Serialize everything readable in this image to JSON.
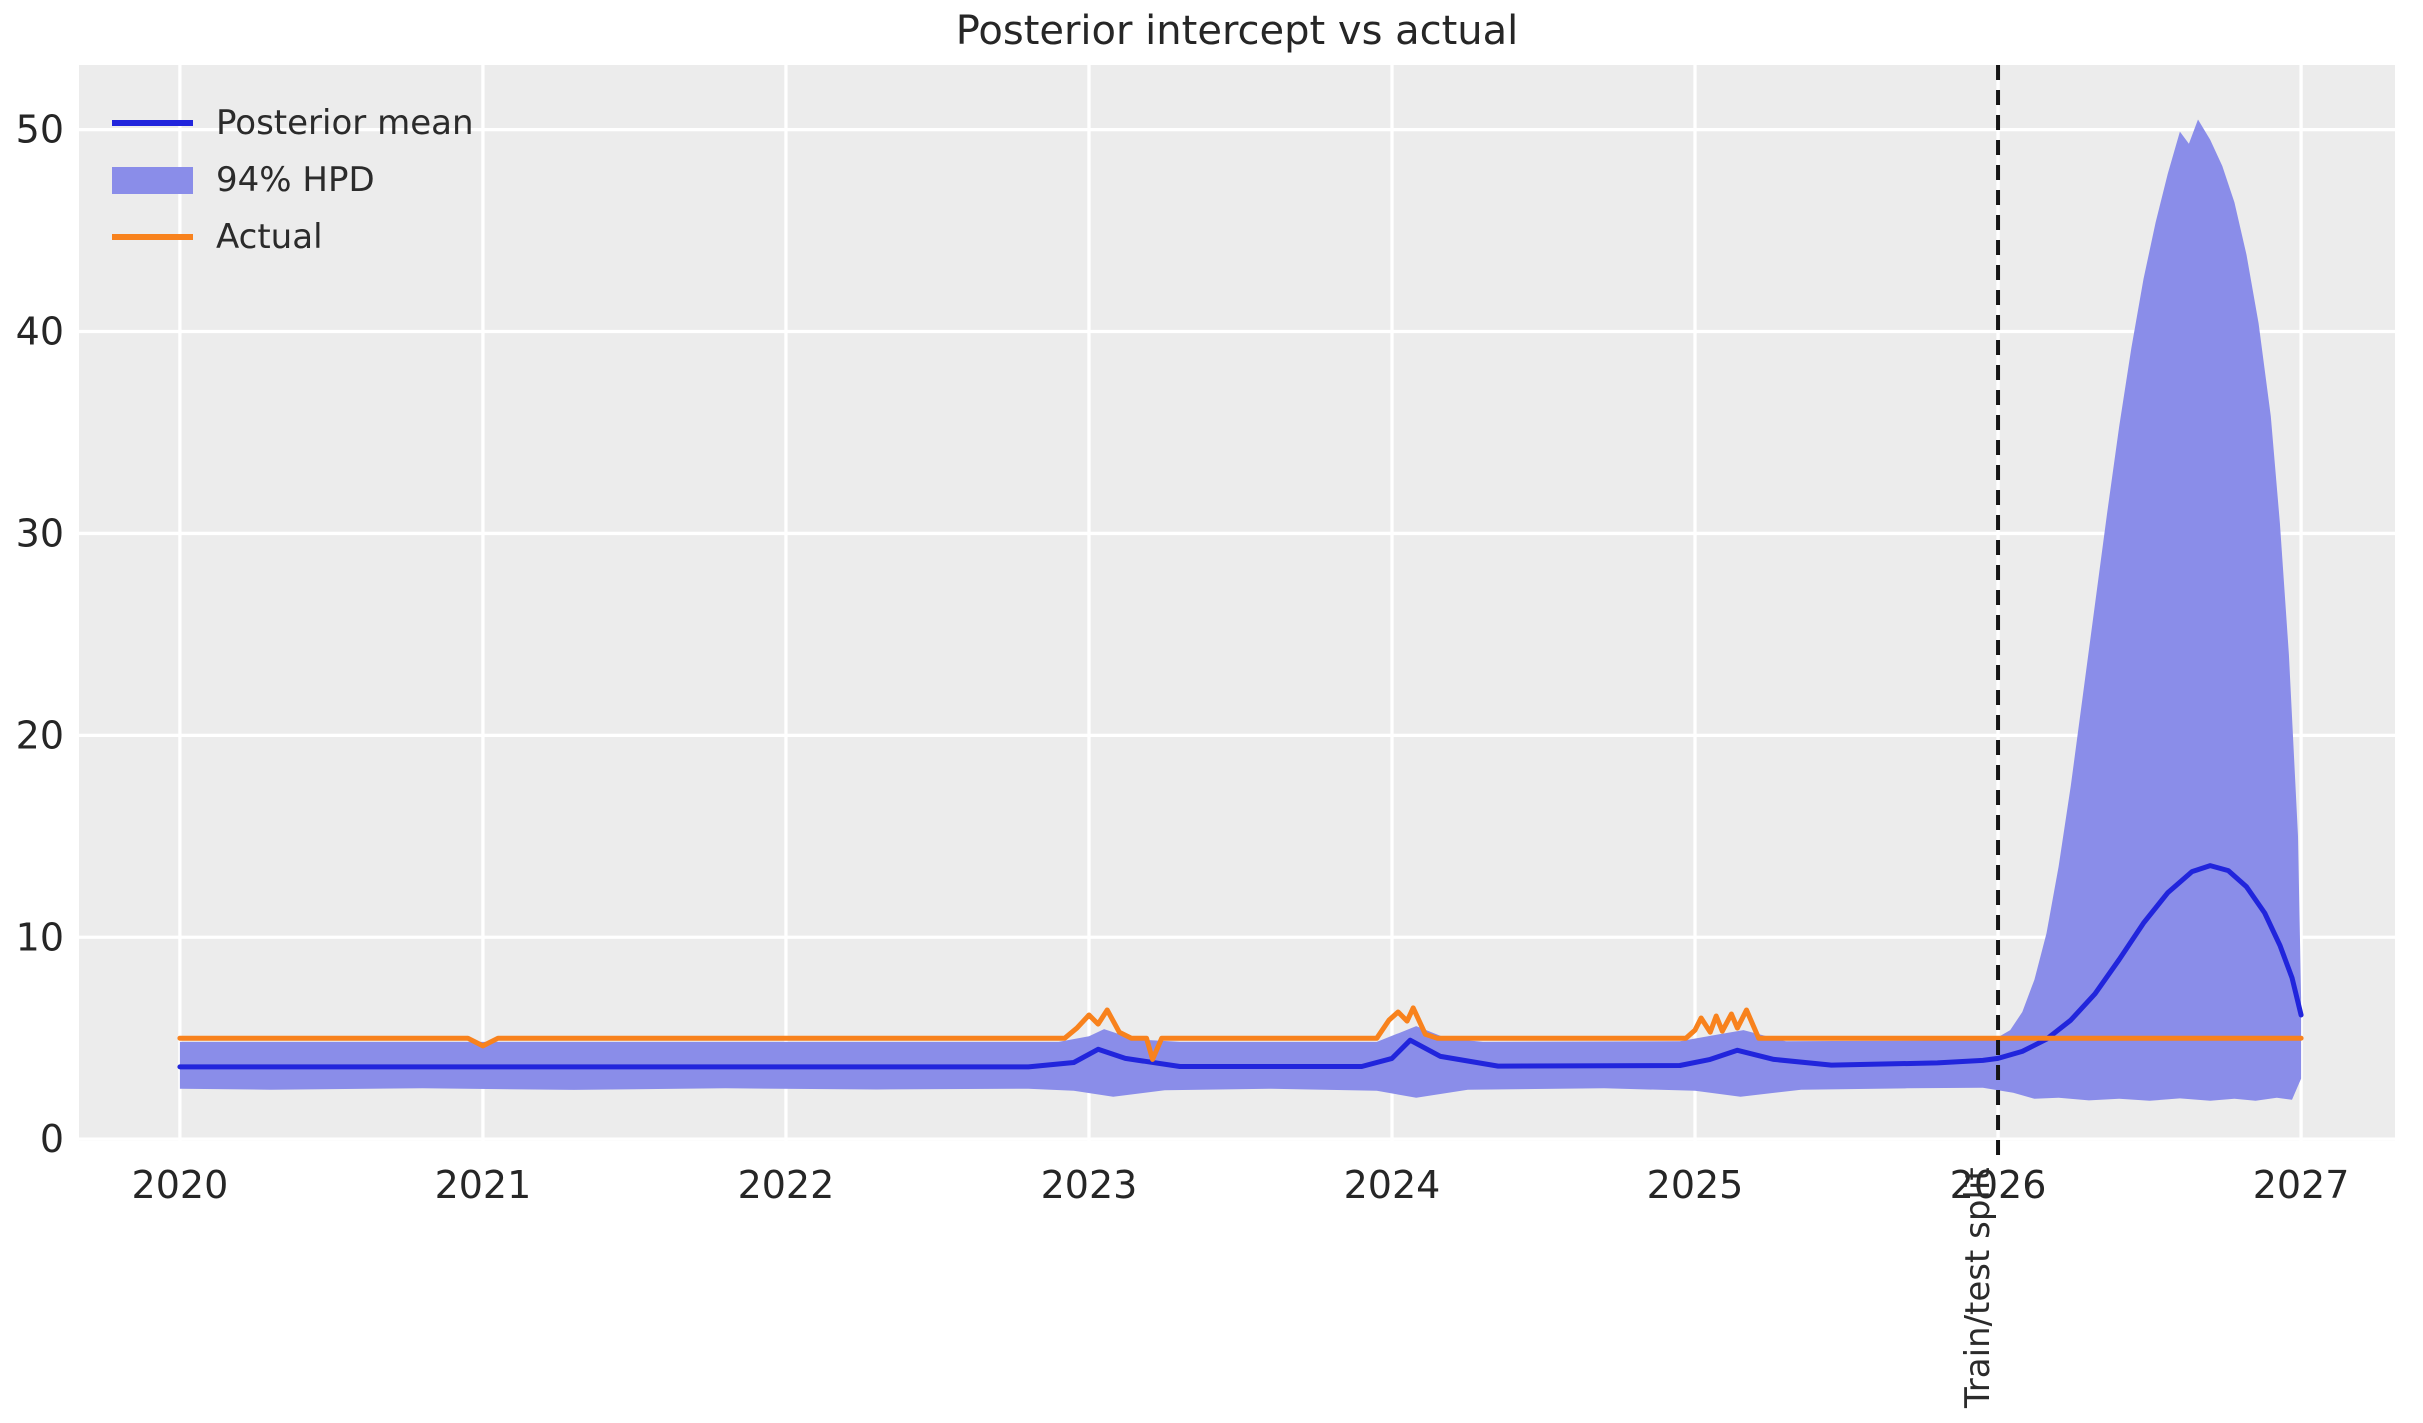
{
  "chart_data": {
    "type": "line",
    "title": "Posterior intercept vs actual",
    "xlabel": "",
    "ylabel": "",
    "xlim": [
      2019.667,
      2027.31
    ],
    "ylim": [
      -0.09,
      53.2
    ],
    "x_ticks": [
      2020,
      2021,
      2022,
      2023,
      2024,
      2025,
      2026,
      2027
    ],
    "y_ticks": [
      0,
      10,
      20,
      30,
      40,
      50
    ],
    "grid_on": true,
    "legend_position": "upper-left",
    "colors": {
      "plot_background": "#ececec",
      "grid": "#ffffff",
      "tick_labels": "#262626",
      "posterior_mean": "#2125dc",
      "hpd_band": "#8a8de9",
      "actual": "#f8821d",
      "split_line": "#141414"
    },
    "legend": [
      {
        "label": "Posterior mean",
        "type": "line",
        "color": "#2125dc"
      },
      {
        "label": "94% HPD",
        "type": "band",
        "color": "#8a8de9"
      },
      {
        "label": "Actual",
        "type": "line",
        "color": "#f8821d"
      }
    ],
    "split_line": {
      "x": 2026.0,
      "label": "Train/test split"
    },
    "series": [
      {
        "name": "Posterior mean",
        "color": "#2125dc",
        "width": 5,
        "points": [
          [
            2020.0,
            3.58
          ],
          [
            2022.8,
            3.58
          ],
          [
            2022.95,
            3.8
          ],
          [
            2023.03,
            4.45
          ],
          [
            2023.12,
            4.0
          ],
          [
            2023.3,
            3.6
          ],
          [
            2023.9,
            3.6
          ],
          [
            2024.0,
            4.0
          ],
          [
            2024.06,
            4.9
          ],
          [
            2024.16,
            4.1
          ],
          [
            2024.35,
            3.62
          ],
          [
            2024.95,
            3.65
          ],
          [
            2025.05,
            3.95
          ],
          [
            2025.14,
            4.4
          ],
          [
            2025.26,
            3.95
          ],
          [
            2025.45,
            3.67
          ],
          [
            2025.8,
            3.78
          ],
          [
            2025.95,
            3.9
          ],
          [
            2026.0,
            4.0
          ],
          [
            2026.08,
            4.35
          ],
          [
            2026.16,
            4.95
          ],
          [
            2026.24,
            5.9
          ],
          [
            2026.32,
            7.2
          ],
          [
            2026.4,
            8.9
          ],
          [
            2026.48,
            10.7
          ],
          [
            2026.56,
            12.2
          ],
          [
            2026.64,
            13.25
          ],
          [
            2026.7,
            13.55
          ],
          [
            2026.76,
            13.3
          ],
          [
            2026.82,
            12.5
          ],
          [
            2026.88,
            11.2
          ],
          [
            2026.93,
            9.6
          ],
          [
            2026.97,
            8.0
          ],
          [
            2027.0,
            6.15
          ]
        ]
      },
      {
        "name": "Actual",
        "color": "#f8821d",
        "width": 5,
        "points": [
          [
            2020.0,
            5
          ],
          [
            2020.95,
            5
          ],
          [
            2021.0,
            4.62
          ],
          [
            2021.05,
            5
          ],
          [
            2022.92,
            5
          ],
          [
            2022.96,
            5.5
          ],
          [
            2023.0,
            6.15
          ],
          [
            2023.03,
            5.7
          ],
          [
            2023.06,
            6.4
          ],
          [
            2023.1,
            5.3
          ],
          [
            2023.14,
            5
          ],
          [
            2023.19,
            5
          ],
          [
            2023.21,
            3.95
          ],
          [
            2023.24,
            5
          ],
          [
            2023.95,
            5
          ],
          [
            2023.99,
            5.9
          ],
          [
            2024.02,
            6.3
          ],
          [
            2024.05,
            5.85
          ],
          [
            2024.07,
            6.5
          ],
          [
            2024.11,
            5.2
          ],
          [
            2024.15,
            5
          ],
          [
            2024.97,
            5
          ],
          [
            2025.0,
            5.4
          ],
          [
            2025.02,
            6.0
          ],
          [
            2025.05,
            5.3
          ],
          [
            2025.07,
            6.1
          ],
          [
            2025.09,
            5.35
          ],
          [
            2025.12,
            6.2
          ],
          [
            2025.14,
            5.5
          ],
          [
            2025.17,
            6.4
          ],
          [
            2025.21,
            5
          ],
          [
            2027.0,
            5
          ]
        ]
      }
    ],
    "band": {
      "name": "94% HPD",
      "color": "#8a8de9",
      "upper": [
        [
          2020.0,
          4.82
        ],
        [
          2022.9,
          4.82
        ],
        [
          2023.0,
          5.1
        ],
        [
          2023.05,
          5.45
        ],
        [
          2023.15,
          4.95
        ],
        [
          2023.3,
          4.82
        ],
        [
          2023.95,
          4.82
        ],
        [
          2024.03,
          5.3
        ],
        [
          2024.08,
          5.6
        ],
        [
          2024.18,
          5.0
        ],
        [
          2024.3,
          4.82
        ],
        [
          2024.95,
          4.85
        ],
        [
          2025.08,
          5.2
        ],
        [
          2025.16,
          5.4
        ],
        [
          2025.3,
          4.85
        ],
        [
          2025.9,
          4.9
        ],
        [
          2026.0,
          5.05
        ],
        [
          2026.04,
          5.4
        ],
        [
          2026.08,
          6.3
        ],
        [
          2026.12,
          7.9
        ],
        [
          2026.16,
          10.2
        ],
        [
          2026.2,
          13.5
        ],
        [
          2026.24,
          17.5
        ],
        [
          2026.28,
          22
        ],
        [
          2026.32,
          26.5
        ],
        [
          2026.36,
          31
        ],
        [
          2026.4,
          35.3
        ],
        [
          2026.44,
          39.2
        ],
        [
          2026.48,
          42.6
        ],
        [
          2026.52,
          45.4
        ],
        [
          2026.56,
          47.8
        ],
        [
          2026.6,
          49.9
        ],
        [
          2026.63,
          49.3
        ],
        [
          2026.66,
          50.5
        ],
        [
          2026.7,
          49.5
        ],
        [
          2026.74,
          48.2
        ],
        [
          2026.78,
          46.4
        ],
        [
          2026.82,
          43.8
        ],
        [
          2026.86,
          40.4
        ],
        [
          2026.9,
          35.8
        ],
        [
          2026.93,
          30.5
        ],
        [
          2026.96,
          24
        ],
        [
          2026.99,
          15
        ],
        [
          2027.0,
          7.0
        ]
      ],
      "lower": [
        [
          2020.0,
          2.5
        ],
        [
          2020.3,
          2.45
        ],
        [
          2020.8,
          2.52
        ],
        [
          2021.3,
          2.44
        ],
        [
          2021.8,
          2.52
        ],
        [
          2022.3,
          2.46
        ],
        [
          2022.8,
          2.5
        ],
        [
          2022.95,
          2.4
        ],
        [
          2023.08,
          2.1
        ],
        [
          2023.25,
          2.42
        ],
        [
          2023.6,
          2.5
        ],
        [
          2023.95,
          2.4
        ],
        [
          2024.08,
          2.05
        ],
        [
          2024.25,
          2.45
        ],
        [
          2024.7,
          2.52
        ],
        [
          2025.0,
          2.4
        ],
        [
          2025.15,
          2.1
        ],
        [
          2025.35,
          2.45
        ],
        [
          2025.7,
          2.52
        ],
        [
          2025.95,
          2.55
        ],
        [
          2026.05,
          2.3
        ],
        [
          2026.12,
          2.0
        ],
        [
          2026.2,
          2.05
        ],
        [
          2026.3,
          1.92
        ],
        [
          2026.4,
          2.0
        ],
        [
          2026.5,
          1.9
        ],
        [
          2026.6,
          2.02
        ],
        [
          2026.7,
          1.9
        ],
        [
          2026.78,
          2.0
        ],
        [
          2026.85,
          1.9
        ],
        [
          2026.92,
          2.05
        ],
        [
          2026.97,
          1.95
        ],
        [
          2027.0,
          3.0
        ]
      ]
    }
  }
}
